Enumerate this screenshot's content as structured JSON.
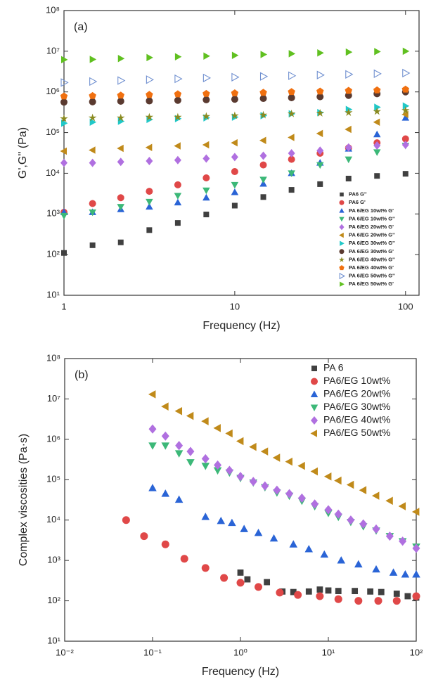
{
  "chart_data": [
    {
      "type": "scatter",
      "annotation": "(a)",
      "xlabel": "Frequency (Hz)",
      "ylabel": "G',G'' (Pa)",
      "xscale": "log",
      "yscale": "log",
      "xlim": [
        1,
        120
      ],
      "ylim": [
        10,
        100000000
      ],
      "xticks": [
        1,
        10,
        100
      ],
      "yticks": [
        {
          "value": 10,
          "label": "10¹"
        },
        {
          "value": 100,
          "label": "10²"
        },
        {
          "value": 1000,
          "label": "10³"
        },
        {
          "value": 10000,
          "label": "10⁴"
        },
        {
          "value": 100000,
          "label": "10⁵"
        },
        {
          "value": 1000000,
          "label": "10⁶"
        },
        {
          "value": 10000000,
          "label": "10⁷"
        },
        {
          "value": 100000000,
          "label": "10⁸"
        }
      ],
      "legend": "lower right",
      "x": [
        1,
        1.47,
        2.15,
        3.16,
        4.64,
        6.81,
        10,
        14.7,
        21.5,
        31.6,
        46.4,
        68.1,
        100
      ],
      "series": [
        {
          "name": "PA6 G''",
          "color": "#404040",
          "marker": "square",
          "values": [
            110,
            170,
            200,
            400,
            600,
            970,
            1600,
            2600,
            3900,
            5400,
            7400,
            8600,
            9700
          ]
        },
        {
          "name": "PA6 G'",
          "color": "#e04848",
          "marker": "circle",
          "values": [
            1100,
            1800,
            2500,
            3600,
            5200,
            7700,
            11000,
            16000,
            22000,
            31000,
            42000,
            56000,
            70000
          ]
        },
        {
          "name": "PA 6/EG 10wt% G'",
          "color": "#2a64d6",
          "marker": "triangle-up",
          "values": [
            1100,
            1100,
            1300,
            1500,
            1900,
            2500,
            3400,
            5500,
            10000,
            18000,
            40000,
            90000,
            230000
          ]
        },
        {
          "name": "PA 6/EG 10wt% G''",
          "color": "#3cb878",
          "marker": "triangle-down",
          "values": [
            900,
            1100,
            1500,
            2000,
            2800,
            3800,
            5200,
            7000,
            10000,
            16000,
            22000,
            33000,
            48000
          ]
        },
        {
          "name": "PA 6/EG 20wt% G'",
          "color": "#b070e0",
          "marker": "diamond",
          "values": [
            18000,
            18000,
            19000,
            20000,
            21000,
            23000,
            25000,
            27000,
            31000,
            36000,
            43000,
            48000,
            50000
          ]
        },
        {
          "name": "PA 6/EG 20wt% G''",
          "color": "#c08a1a",
          "marker": "triangle-left",
          "values": [
            35000,
            37000,
            41000,
            43000,
            47000,
            50000,
            56000,
            64000,
            76000,
            95000,
            120000,
            180000,
            280000
          ]
        },
        {
          "name": "PA 6/EG 30wt% G''",
          "color": "#20c8c8",
          "marker": "triangle-right",
          "values": [
            170000,
            180000,
            190000,
            210000,
            220000,
            230000,
            240000,
            260000,
            290000,
            310000,
            370000,
            420000,
            450000
          ]
        },
        {
          "name": "PA 6/EG 30wt% G'",
          "color": "#5a3a30",
          "marker": "circle",
          "values": [
            560000,
            570000,
            590000,
            600000,
            620000,
            640000,
            660000,
            690000,
            720000,
            760000,
            820000,
            900000,
            1000000
          ]
        },
        {
          "name": "PA 6/EG 40wt% G''",
          "color": "#8a8a20",
          "marker": "star",
          "values": [
            220000,
            230000,
            230000,
            240000,
            240000,
            250000,
            260000,
            270000,
            290000,
            300000,
            310000,
            330000,
            350000
          ]
        },
        {
          "name": "PA 6/EG 40wt% G'",
          "color": "#f07010",
          "marker": "pentagon",
          "values": [
            780000,
            800000,
            820000,
            850000,
            880000,
            900000,
            930000,
            960000,
            1000000,
            1030000,
            1070000,
            1100000,
            1150000
          ]
        },
        {
          "name": "PA 6/EG 50wt% G''",
          "color": "#7090d0",
          "marker": "triangle-right-open",
          "values": [
            1700000,
            1800000,
            1900000,
            2000000,
            2100000,
            2200000,
            2300000,
            2400000,
            2500000,
            2600000,
            2700000,
            2800000,
            2900000
          ]
        },
        {
          "name": "PA 6/EG 50wt% G'",
          "color": "#60c020",
          "marker": "triangle-right",
          "values": [
            6200000,
            6300000,
            6600000,
            7000000,
            7300000,
            7600000,
            7900000,
            8300000,
            8700000,
            9100000,
            9500000,
            9800000,
            10000000
          ]
        }
      ]
    },
    {
      "type": "scatter",
      "annotation": "(b)",
      "xlabel": "Frequency (Hz)",
      "ylabel": "Complex viscosities  (Pa·s)",
      "xscale": "log",
      "yscale": "log",
      "xlim": [
        0.01,
        100
      ],
      "ylim": [
        10,
        100000000
      ],
      "xticks": [
        {
          "value": 0.01,
          "label": "10⁻²"
        },
        {
          "value": 0.1,
          "label": "10⁻¹"
        },
        {
          "value": 1,
          "label": "10⁰"
        },
        {
          "value": 10,
          "label": "10¹"
        },
        {
          "value": 100,
          "label": "10²"
        }
      ],
      "yticks": [
        {
          "value": 10,
          "label": "10¹"
        },
        {
          "value": 100,
          "label": "10²"
        },
        {
          "value": 1000,
          "label": "10³"
        },
        {
          "value": 10000,
          "label": "10⁴"
        },
        {
          "value": 100000,
          "label": "10⁵"
        },
        {
          "value": 1000000,
          "label": "10⁶"
        },
        {
          "value": 10000000,
          "label": "10⁷"
        },
        {
          "value": 100000000,
          "label": "10⁸"
        }
      ],
      "legend": "upper right",
      "series": [
        {
          "name": "PA 6",
          "color": "#404040",
          "marker": "square",
          "x": [
            1,
            1.2,
            2,
            3,
            4,
            6,
            8,
            10,
            13,
            20,
            30,
            40,
            60,
            80,
            100
          ],
          "values": [
            500,
            340,
            290,
            170,
            165,
            170,
            190,
            180,
            175,
            175,
            170,
            165,
            150,
            130,
            120
          ]
        },
        {
          "name": "PA6/EG 10wt%",
          "color": "#e04848",
          "marker": "circle",
          "x": [
            0.05,
            0.08,
            0.14,
            0.23,
            0.4,
            0.65,
            1,
            1.6,
            2.8,
            4.5,
            8,
            13,
            22,
            37,
            60,
            100
          ],
          "values": [
            10000,
            4000,
            2500,
            1100,
            650,
            370,
            280,
            220,
            160,
            140,
            130,
            110,
            100,
            100,
            100,
            130
          ]
        },
        {
          "name": "PA6/EG 20wt%",
          "color": "#2a64d6",
          "marker": "triangle-up",
          "x": [
            0.1,
            0.14,
            0.2,
            0.4,
            0.6,
            0.8,
            1.1,
            1.6,
            2.4,
            4,
            6,
            9,
            14,
            22,
            35,
            55,
            75,
            100
          ],
          "values": [
            62000,
            45000,
            32000,
            12000,
            9500,
            8500,
            6000,
            4800,
            3500,
            2500,
            1900,
            1400,
            1000,
            800,
            600,
            500,
            450,
            450
          ]
        },
        {
          "name": "PA6/EG 30wt%",
          "color": "#3cb878",
          "marker": "triangle-down",
          "x": [
            0.1,
            0.14,
            0.2,
            0.27,
            0.4,
            0.55,
            0.75,
            1,
            1.4,
            1.9,
            2.6,
            3.6,
            5,
            7,
            10,
            13,
            18,
            25,
            35,
            50,
            70,
            100
          ],
          "values": [
            700000,
            700000,
            450000,
            270000,
            220000,
            170000,
            150000,
            110000,
            85000,
            65000,
            48000,
            40000,
            30000,
            22000,
            15000,
            12000,
            9000,
            7000,
            5500,
            4000,
            3000,
            2200
          ]
        },
        {
          "name": "PA6/EG 40wt%",
          "color": "#b070e0",
          "marker": "diamond",
          "x": [
            0.1,
            0.14,
            0.2,
            0.27,
            0.4,
            0.55,
            0.75,
            1,
            1.4,
            1.9,
            2.6,
            3.6,
            5,
            7,
            10,
            13,
            18,
            25,
            35,
            50,
            70,
            100
          ],
          "values": [
            1800000,
            1200000,
            700000,
            500000,
            330000,
            230000,
            170000,
            120000,
            90000,
            70000,
            55000,
            45000,
            35000,
            25000,
            18000,
            14000,
            10000,
            8000,
            6000,
            4000,
            3000,
            2000
          ]
        },
        {
          "name": "PA6/EG 50wt%",
          "color": "#c08a1a",
          "marker": "triangle-left",
          "x": [
            0.1,
            0.14,
            0.2,
            0.27,
            0.4,
            0.55,
            0.75,
            1,
            1.4,
            1.9,
            2.6,
            3.6,
            5,
            7,
            10,
            13,
            18,
            25,
            35,
            50,
            70,
            100
          ],
          "values": [
            13000000,
            6500000,
            5000000,
            3800000,
            2800000,
            1900000,
            1400000,
            900000,
            650000,
            500000,
            350000,
            280000,
            220000,
            160000,
            120000,
            95000,
            75000,
            55000,
            40000,
            30000,
            22000,
            16000
          ]
        }
      ]
    }
  ]
}
